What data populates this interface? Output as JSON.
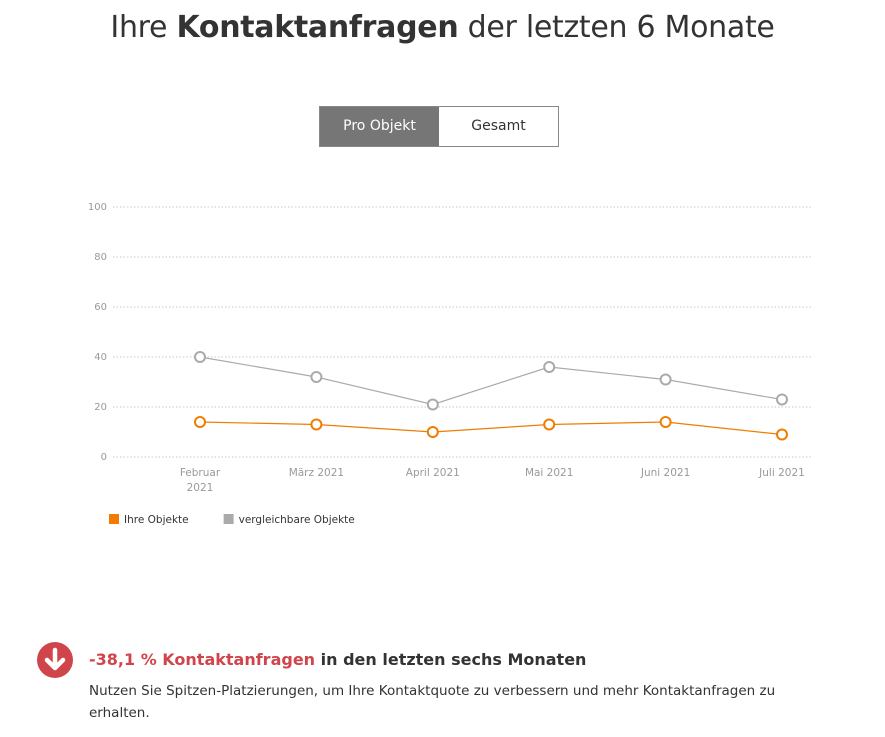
{
  "header": {
    "title_parts": [
      "Ihre",
      "Kontaktanfragen",
      "der letzten 6 Monate"
    ]
  },
  "toggle": {
    "options": [
      "Pro Objekt",
      "Gesamt"
    ],
    "active": 0
  },
  "chart_data": {
    "type": "line",
    "categories": [
      "Februar 2021",
      "März 2021",
      "April 2021",
      "Mai 2021",
      "Juni 2021",
      "Juli 2021"
    ],
    "series": [
      {
        "name": "Ihre Objekte",
        "color": "#f07d00",
        "values": [
          14,
          13,
          10,
          13,
          14,
          9
        ]
      },
      {
        "name": "vergleichbare Objekte",
        "color": "#aaaaaa",
        "values": [
          40,
          32,
          21,
          36,
          31,
          23
        ]
      }
    ],
    "ylim": [
      0,
      100
    ],
    "yticks": [
      0,
      20,
      40,
      60,
      80,
      100
    ],
    "grid": true,
    "legend": "bottom-left"
  },
  "summary": {
    "highlight": "-38,1 % Kontaktanfragen",
    "headline": "in den letzten sechs Monaten",
    "text": "Nutzen Sie Spitzen-Platzierungen, um Ihre Kontaktquote zu verbessern und mehr Kontaktanfragen zu erhalten."
  }
}
